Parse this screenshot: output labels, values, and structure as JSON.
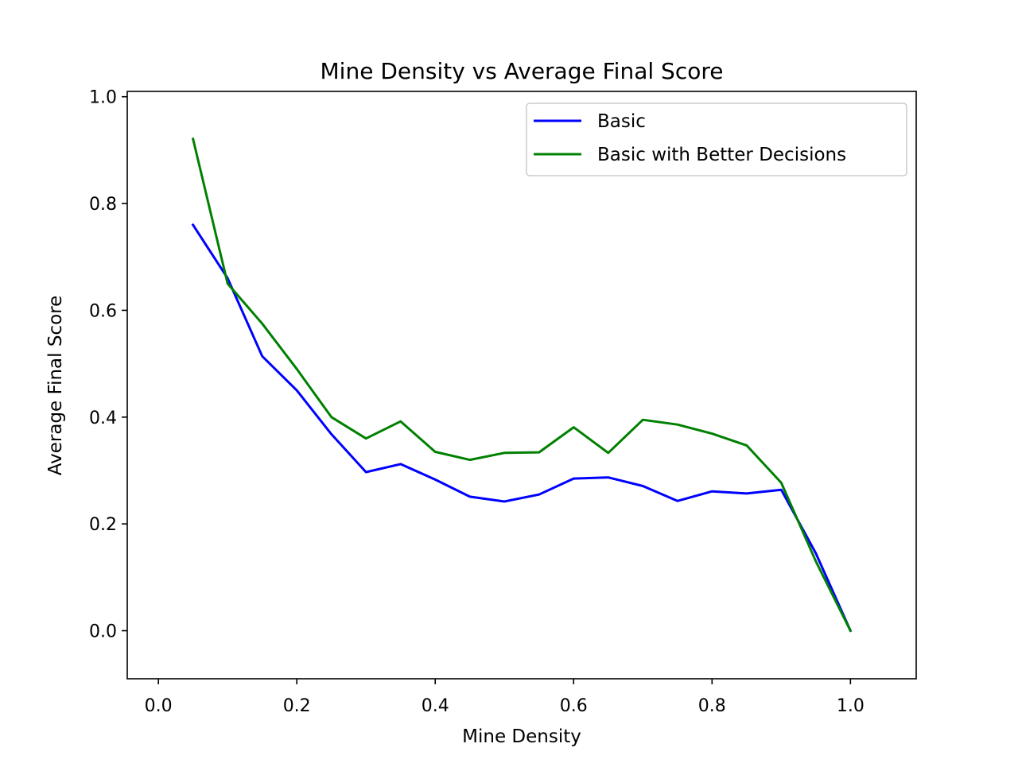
{
  "chart_data": {
    "type": "line",
    "title": "Mine Density vs Average Final Score",
    "xlabel": "Mine Density",
    "ylabel": "Average Final Score",
    "xlim": [
      -0.045,
      1.095
    ],
    "ylim": [
      -0.09,
      1.01
    ],
    "xticks": [
      "0.0",
      "0.2",
      "0.4",
      "0.6",
      "0.8",
      "1.0"
    ],
    "yticks": [
      "0.0",
      "0.2",
      "0.4",
      "0.6",
      "0.8",
      "1.0"
    ],
    "grid": false,
    "legend_position": "top-right",
    "x": [
      0.05,
      0.1,
      0.15,
      0.2,
      0.25,
      0.3,
      0.35,
      0.4,
      0.45,
      0.5,
      0.55,
      0.6,
      0.65,
      0.7,
      0.75,
      0.8,
      0.85,
      0.9,
      0.95,
      1.0
    ],
    "series": [
      {
        "name": "Basic",
        "color": "#0000ff",
        "values": [
          0.76,
          0.66,
          0.514,
          0.45,
          0.368,
          0.297,
          0.312,
          0.283,
          0.251,
          0.242,
          0.255,
          0.285,
          0.287,
          0.271,
          0.243,
          0.261,
          0.257,
          0.264,
          0.145,
          0.0
        ]
      },
      {
        "name": "Basic with Better Decisions",
        "color": "#008000",
        "values": [
          0.921,
          0.65,
          0.575,
          0.49,
          0.4,
          0.36,
          0.392,
          0.335,
          0.32,
          0.333,
          0.334,
          0.381,
          0.333,
          0.395,
          0.386,
          0.369,
          0.347,
          0.277,
          0.13,
          0.0
        ]
      }
    ]
  }
}
